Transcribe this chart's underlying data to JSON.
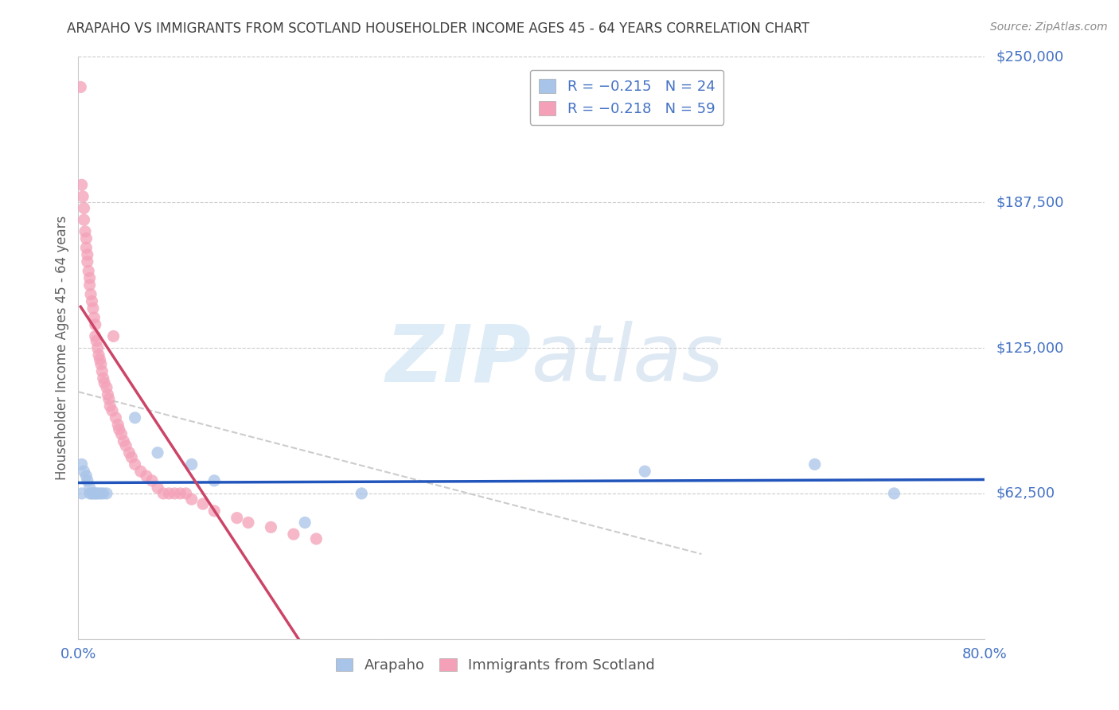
{
  "title": "ARAPAHO VS IMMIGRANTS FROM SCOTLAND HOUSEHOLDER INCOME AGES 45 - 64 YEARS CORRELATION CHART",
  "source": "Source: ZipAtlas.com",
  "ylabel": "Householder Income Ages 45 - 64 years",
  "xlim": [
    0.0,
    0.8
  ],
  "ylim": [
    0,
    250000
  ],
  "yticks": [
    0,
    62500,
    125000,
    187500,
    250000
  ],
  "ytick_labels": [
    "",
    "$62,500",
    "$125,000",
    "$187,500",
    "$250,000"
  ],
  "xticks": [
    0.0,
    0.1,
    0.2,
    0.3,
    0.4,
    0.5,
    0.6,
    0.7,
    0.8
  ],
  "xtick_labels": [
    "0.0%",
    "",
    "",
    "",
    "",
    "",
    "",
    "",
    "80.0%"
  ],
  "arapaho_color": "#a8c4e8",
  "scotland_color": "#f4a0b8",
  "arapaho_line_color": "#2255bb",
  "scotland_line_color": "#cc4466",
  "dash_line_color": "#cccccc",
  "watermark_color": "#d0e4f4",
  "background_color": "#ffffff",
  "grid_color": "#cccccc",
  "axis_color": "#cccccc",
  "title_color": "#404040",
  "tick_label_color": "#4472c4",
  "ylabel_color": "#606060",
  "arapaho_x": [
    0.003,
    0.005,
    0.007,
    0.008,
    0.01,
    0.01,
    0.012,
    0.013,
    0.015,
    0.016,
    0.018,
    0.02,
    0.022,
    0.025,
    0.05,
    0.07,
    0.1,
    0.12,
    0.2,
    0.25,
    0.5,
    0.65,
    0.72,
    0.003
  ],
  "arapaho_y": [
    75000,
    72000,
    70000,
    68000,
    62500,
    65000,
    62500,
    62500,
    62500,
    62500,
    62500,
    62500,
    62500,
    62500,
    95000,
    80000,
    75000,
    68000,
    50000,
    62500,
    72000,
    75000,
    62500,
    62500
  ],
  "scotland_x": [
    0.002,
    0.003,
    0.004,
    0.005,
    0.005,
    0.006,
    0.007,
    0.007,
    0.008,
    0.008,
    0.009,
    0.01,
    0.01,
    0.011,
    0.012,
    0.013,
    0.014,
    0.015,
    0.015,
    0.016,
    0.017,
    0.018,
    0.019,
    0.02,
    0.021,
    0.022,
    0.023,
    0.025,
    0.026,
    0.027,
    0.028,
    0.03,
    0.031,
    0.033,
    0.035,
    0.036,
    0.038,
    0.04,
    0.042,
    0.045,
    0.047,
    0.05,
    0.055,
    0.06,
    0.065,
    0.07,
    0.075,
    0.08,
    0.085,
    0.09,
    0.095,
    0.1,
    0.11,
    0.12,
    0.14,
    0.15,
    0.17,
    0.19,
    0.21
  ],
  "scotland_y": [
    237000,
    195000,
    190000,
    185000,
    180000,
    175000,
    172000,
    168000,
    165000,
    162000,
    158000,
    155000,
    152000,
    148000,
    145000,
    142000,
    138000,
    135000,
    130000,
    128000,
    125000,
    122000,
    120000,
    118000,
    115000,
    112000,
    110000,
    108000,
    105000,
    103000,
    100000,
    98000,
    130000,
    95000,
    92000,
    90000,
    88000,
    85000,
    83000,
    80000,
    78000,
    75000,
    72000,
    70000,
    68000,
    65000,
    62500,
    62500,
    62500,
    62500,
    62500,
    60000,
    58000,
    55000,
    52000,
    50000,
    48000,
    45000,
    43000
  ]
}
